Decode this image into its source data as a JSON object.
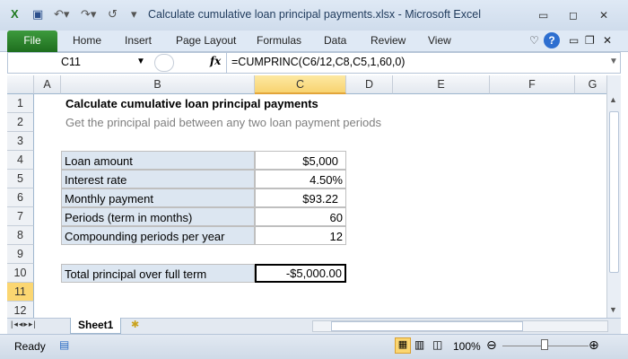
{
  "window": {
    "title": "Calculate cumulative loan principal payments.xlsx  -  Microsoft Excel"
  },
  "ribbon": {
    "tabs": [
      "File",
      "Home",
      "Insert",
      "Page Layout",
      "Formulas",
      "Data",
      "Review",
      "View"
    ]
  },
  "formula_bar": {
    "name_box": "C11",
    "fx": "fx",
    "formula": "=CUMPRINC(C6/12,C8,C5,1,60,0)"
  },
  "columns": [
    "A",
    "B",
    "C",
    "D",
    "E",
    "F",
    "G"
  ],
  "selected_column": "C",
  "rows": [
    "1",
    "2",
    "3",
    "4",
    "5",
    "6",
    "7",
    "8",
    "9",
    "10",
    "11",
    "12"
  ],
  "selected_row": "11",
  "sheet": {
    "title": "Calculate cumulative loan principal payments",
    "subtitle": "Get the principal paid between any two loan payment periods",
    "inputs": [
      {
        "label": "Loan amount",
        "value": "$5,000"
      },
      {
        "label": "Interest rate",
        "value": "4.50%"
      },
      {
        "label": "Monthly payment",
        "value": "$93.22"
      },
      {
        "label": "Periods (term in months)",
        "value": "60"
      },
      {
        "label": "Compounding periods per year",
        "value": "12"
      }
    ],
    "result": {
      "label": "Total principal over full term",
      "value": "-$5,000.00"
    }
  },
  "tabs": {
    "sheet": "Sheet1"
  },
  "status": {
    "text": "Ready",
    "zoom": "100%"
  },
  "colors": {
    "label_fill": "#dce6f1",
    "file_tab": "#2a7d2a",
    "selection": "#f8d370"
  }
}
